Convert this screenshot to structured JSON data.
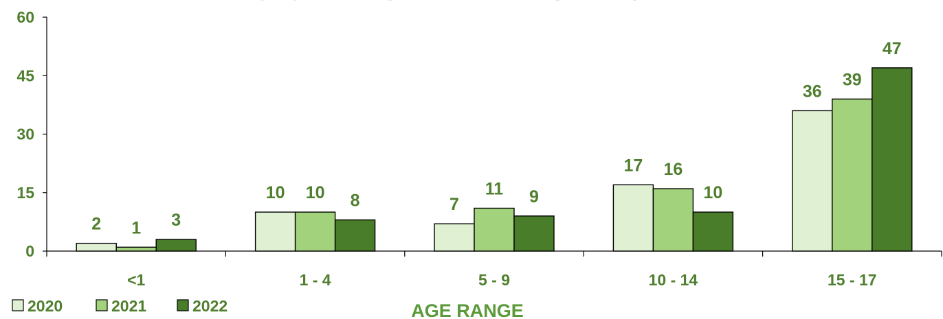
{
  "chart_data": {
    "type": "bar",
    "title": "MOTOR VEHICLE FATALITIES BY AGE",
    "xlabel": "AGE RANGE",
    "ylabel": "",
    "ylim": [
      0,
      60
    ],
    "yticks": [
      0,
      15,
      30,
      45,
      60
    ],
    "categories": [
      "<1",
      "1 - 4",
      "5 - 9",
      "10 - 14",
      "15 - 17"
    ],
    "series": [
      {
        "name": "2020",
        "values": [
          2,
          10,
          7,
          17,
          36
        ],
        "color": "#dff0d3"
      },
      {
        "name": "2021",
        "values": [
          1,
          10,
          11,
          16,
          39
        ],
        "color": "#a3d27c"
      },
      {
        "name": "2022",
        "values": [
          3,
          8,
          9,
          10,
          47
        ],
        "color": "#4a7d29"
      }
    ],
    "legend_position": "bottom-left",
    "grid": false,
    "text_color": "#4f7f2f"
  }
}
